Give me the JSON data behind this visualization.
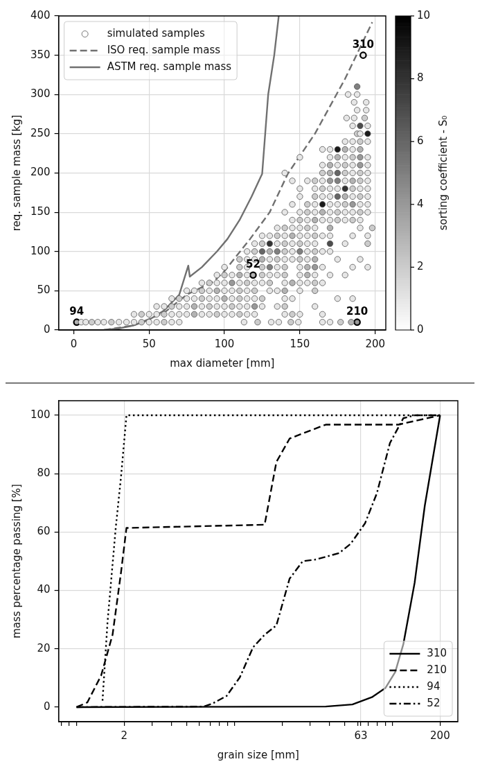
{
  "chart_data": [
    {
      "type": "scatter",
      "xlabel": "max diameter [mm]",
      "ylabel": "req. sample mass [kg]",
      "clabel": "sorting coefficient - S₀",
      "xlim": [
        -10,
        207
      ],
      "xticks": [
        0,
        50,
        100,
        150,
        200
      ],
      "ylim": [
        0,
        400
      ],
      "yticks": [
        0,
        50,
        100,
        150,
        200,
        250,
        300,
        350,
        400
      ],
      "clim": [
        0,
        10
      ],
      "cticks": [
        0,
        2,
        4,
        6,
        8,
        10
      ],
      "grid": true,
      "legend": "top left",
      "annotations": [
        {
          "text": "310",
          "x": 192,
          "y": 350
        },
        {
          "text": "52",
          "x": 119,
          "y": 70
        },
        {
          "text": "210",
          "x": 188,
          "y": 10
        },
        {
          "text": "94",
          "x": 2,
          "y": 10
        }
      ],
      "series": [
        {
          "name": "simulated samples",
          "type": "scatter",
          "marker": "circle",
          "color": "#555555",
          "x": [
            5,
            8,
            12,
            16,
            20,
            25,
            30,
            35,
            40,
            45,
            50,
            55,
            60,
            65,
            70,
            113,
            122,
            131,
            136,
            144,
            149,
            165,
            170,
            177,
            184,
            40,
            45,
            50,
            55,
            60,
            65,
            70,
            75,
            80,
            85,
            90,
            95,
            100,
            105,
            110,
            115,
            120,
            140,
            145,
            150,
            165,
            55,
            60,
            65,
            70,
            75,
            80,
            85,
            90,
            95,
            100,
            105,
            110,
            115,
            120,
            125,
            135,
            140,
            160,
            65,
            70,
            75,
            80,
            85,
            90,
            95,
            100,
            105,
            110,
            115,
            120,
            125,
            140,
            145,
            175,
            185,
            75,
            80,
            85,
            90,
            95,
            100,
            105,
            110,
            115,
            120,
            130,
            135,
            140,
            150,
            160,
            85,
            90,
            95,
            100,
            105,
            110,
            115,
            120,
            125,
            130,
            140,
            145,
            150,
            155,
            160,
            165,
            95,
            100,
            105,
            110,
            115,
            125,
            130,
            135,
            140,
            150,
            155,
            160,
            170,
            180,
            100,
            110,
            115,
            125,
            130,
            135,
            140,
            150,
            155,
            160,
            165,
            185,
            195,
            110,
            115,
            120,
            125,
            130,
            135,
            140,
            145,
            150,
            155,
            160,
            175,
            190,
            115,
            120,
            125,
            130,
            135,
            140,
            145,
            150,
            155,
            160,
            165,
            170,
            120,
            125,
            130,
            135,
            140,
            145,
            150,
            155,
            160,
            170,
            180,
            195,
            125,
            130,
            135,
            140,
            145,
            150,
            155,
            160,
            165,
            170,
            185,
            195,
            135,
            140,
            145,
            150,
            155,
            160,
            170,
            190,
            198,
            145,
            150,
            155,
            160,
            165,
            170,
            175,
            180,
            185,
            190,
            140,
            150,
            155,
            160,
            165,
            170,
            175,
            180,
            185,
            190,
            195,
            145,
            155,
            160,
            165,
            170,
            175,
            180,
            185,
            190,
            195,
            150,
            160,
            165,
            170,
            175,
            180,
            185,
            190,
            195,
            150,
            160,
            165,
            170,
            175,
            180,
            185,
            190,
            195,
            145,
            155,
            160,
            165,
            170,
            175,
            180,
            185,
            190,
            195,
            140,
            165,
            170,
            175,
            180,
            185,
            190,
            195,
            165,
            170,
            175,
            180,
            185,
            190,
            195,
            150,
            170,
            175,
            180,
            185,
            190,
            195,
            165,
            170,
            175,
            180,
            185,
            190,
            180,
            185,
            190,
            195,
            188,
            190,
            195,
            185,
            190,
            195,
            181,
            186,
            193,
            188,
            194,
            186,
            194,
            182,
            188,
            188
          ],
          "values": [
            10,
            10,
            10,
            10,
            10,
            10,
            10,
            10,
            10,
            10,
            10,
            10,
            10,
            10,
            10,
            10,
            10,
            10,
            10,
            10,
            10,
            10,
            10,
            10,
            10,
            20,
            20,
            20,
            20,
            20,
            20,
            20,
            20,
            20,
            20,
            20,
            20,
            20,
            20,
            20,
            20,
            20,
            20,
            20,
            20,
            20,
            30,
            30,
            30,
            30,
            30,
            30,
            30,
            30,
            30,
            30,
            30,
            30,
            30,
            30,
            30,
            30,
            30,
            30,
            40,
            40,
            40,
            40,
            40,
            40,
            40,
            40,
            40,
            40,
            40,
            40,
            40,
            40,
            40,
            40,
            40,
            50,
            50,
            50,
            50,
            50,
            50,
            50,
            50,
            50,
            50,
            50,
            50,
            50,
            50,
            50,
            60,
            60,
            60,
            60,
            60,
            60,
            60,
            60,
            60,
            60,
            60,
            60,
            60,
            60,
            60,
            60,
            70,
            70,
            70,
            70,
            70,
            70,
            70,
            70,
            70,
            70,
            70,
            70,
            70,
            70,
            80,
            80,
            80,
            80,
            80,
            80,
            80,
            80,
            80,
            80,
            80,
            80,
            80,
            90,
            90,
            90,
            90,
            90,
            90,
            90,
            90,
            90,
            90,
            90,
            90,
            90,
            100,
            100,
            100,
            100,
            100,
            100,
            100,
            100,
            100,
            100,
            100,
            100,
            110,
            110,
            110,
            110,
            110,
            110,
            110,
            110,
            110,
            110,
            110,
            110,
            120,
            120,
            120,
            120,
            120,
            120,
            120,
            120,
            120,
            120,
            120,
            120,
            130,
            130,
            130,
            130,
            130,
            130,
            130,
            130,
            130,
            140,
            140,
            140,
            140,
            140,
            140,
            140,
            140,
            140,
            140,
            150,
            150,
            150,
            150,
            150,
            150,
            150,
            150,
            150,
            150,
            150,
            160,
            160,
            160,
            160,
            160,
            160,
            160,
            160,
            160,
            160,
            170,
            170,
            170,
            170,
            170,
            170,
            170,
            170,
            170,
            180,
            180,
            180,
            180,
            180,
            180,
            180,
            180,
            180,
            190,
            190,
            190,
            190,
            190,
            190,
            190,
            190,
            190,
            190,
            200,
            200,
            200,
            200,
            200,
            200,
            200,
            200,
            210,
            210,
            210,
            210,
            210,
            210,
            210,
            220,
            220,
            220,
            220,
            220,
            220,
            220,
            230,
            230,
            230,
            230,
            230,
            230,
            240,
            240,
            240,
            240,
            250,
            250,
            250,
            260,
            260,
            260,
            270,
            270,
            270,
            280,
            280,
            290,
            290,
            300,
            300,
            310
          ],
          "cvalues": [
            1,
            1,
            2,
            1,
            1,
            2,
            1,
            1,
            1,
            2,
            1,
            1,
            2,
            1,
            1,
            1,
            2,
            1,
            1,
            2,
            1,
            1,
            1,
            2,
            3,
            1,
            2,
            1,
            1,
            2,
            1,
            1,
            1,
            3,
            1,
            1,
            2,
            1,
            1,
            2,
            1,
            1,
            1,
            2,
            1,
            1,
            1,
            1,
            2,
            1,
            1,
            3,
            1,
            2,
            1,
            1,
            2,
            1,
            1,
            4,
            1,
            1,
            2,
            1,
            1,
            2,
            1,
            1,
            2,
            1,
            1,
            3,
            1,
            2,
            1,
            1,
            2,
            1,
            1,
            1,
            1,
            1,
            1,
            2,
            1,
            3,
            1,
            1,
            2,
            1,
            2,
            1,
            1,
            3,
            1,
            2,
            1,
            2,
            1,
            1,
            4,
            1,
            2,
            1,
            1,
            2,
            1,
            3,
            1,
            1,
            2,
            1,
            1,
            2,
            1,
            3,
            1,
            2,
            1,
            1,
            2,
            1,
            3,
            1,
            1,
            1,
            1,
            2,
            1,
            2,
            5,
            1,
            2,
            1,
            3,
            4,
            1,
            1,
            1,
            2,
            1,
            1,
            3,
            1,
            2,
            1,
            1,
            2,
            1,
            3,
            1,
            1,
            1,
            2,
            6,
            3,
            5,
            2,
            1,
            5,
            1,
            2,
            1,
            1,
            1,
            2,
            8,
            1,
            2,
            1,
            2,
            1,
            1,
            7,
            1,
            2,
            1,
            1,
            2,
            1,
            3,
            1,
            1,
            2,
            1,
            1,
            1,
            1,
            1,
            2,
            1,
            1,
            2,
            1,
            3,
            1,
            2,
            1,
            2,
            1,
            3,
            1,
            1,
            2,
            1,
            2,
            1,
            1,
            1,
            2,
            1,
            3,
            1,
            2,
            1,
            1,
            2,
            1,
            1,
            2,
            1,
            9,
            1,
            1,
            2,
            4,
            1,
            1,
            1,
            2,
            1,
            1,
            6,
            3,
            1,
            2,
            1,
            1,
            1,
            2,
            1,
            1,
            8,
            2,
            1,
            1,
            1,
            1,
            2,
            1,
            4,
            5,
            1,
            3,
            2,
            1,
            1,
            2,
            3,
            6,
            2,
            1,
            2,
            1,
            1,
            3,
            1,
            2,
            1,
            4,
            1,
            1,
            1,
            3,
            1,
            2,
            4,
            1,
            1,
            1,
            9,
            3,
            1,
            3,
            1,
            1,
            2,
            1,
            2,
            1,
            9,
            1,
            7,
            1,
            1,
            1,
            2,
            1,
            1,
            1,
            1,
            1,
            1,
            5
          ]
        },
        {
          "type": "scatter",
          "marker": "circle",
          "color": "#000000",
          "x": [
            192,
            119,
            188,
            2
          ],
          "values": [
            350,
            70,
            10,
            10
          ],
          "cvalues": [
            1,
            3,
            4,
            3
          ]
        },
        {
          "name": "ISO req. sample mass",
          "type": "line",
          "marker": "none",
          "line_style": "dashed",
          "color": "#707070",
          "x": [
            20,
            40,
            60,
            75,
            93,
            100,
            117,
            130,
            142,
            160,
            180,
            198
          ],
          "values": [
            0,
            6,
            22,
            45,
            62,
            75,
            116,
            150,
            199,
            250,
            320,
            392
          ]
        },
        {
          "name": "ASTM req. sample mass",
          "type": "line",
          "marker": "none",
          "line_style": "solid",
          "color": "#707070",
          "x": [
            20,
            30,
            40,
            50,
            60,
            70,
            76,
            77,
            85,
            95,
            102,
            110,
            118,
            125,
            129,
            133,
            136
          ],
          "values": [
            0,
            2,
            6,
            13,
            25,
            45,
            82,
            68,
            80,
            100,
            116,
            140,
            170,
            199,
            300,
            350,
            400
          ]
        }
      ]
    },
    {
      "type": "line",
      "xlabel": "grain size [mm]",
      "ylabel": "mass percentage passing [%]",
      "log": "x",
      "xlim": [
        0.77,
        259
      ],
      "xticks": [
        {
          "value": 0.8,
          "label": null
        },
        {
          "value": 0.9,
          "label": null
        },
        {
          "value": 1,
          "label": null
        },
        2,
        {
          "value": 3,
          "label": null
        },
        {
          "value": 4,
          "label": null
        },
        {
          "value": 5,
          "label": null
        },
        {
          "value": 6,
          "label": null
        },
        {
          "value": 7,
          "label": null
        },
        {
          "value": 8,
          "label": null
        },
        {
          "value": 9,
          "label": null
        },
        {
          "value": 10,
          "label": null
        },
        {
          "value": 20,
          "label": null
        },
        {
          "value": 30,
          "label": null
        },
        {
          "value": 40,
          "label": null
        },
        {
          "value": 50,
          "label": null
        },
        {
          "value": 60,
          "label": null
        },
        63,
        {
          "value": 70,
          "label": null
        },
        {
          "value": 80,
          "label": null
        },
        {
          "value": 90,
          "label": null
        },
        {
          "value": 100,
          "label": null
        },
        200
      ],
      "ylim": [
        -5,
        105
      ],
      "yticks": [
        0,
        20,
        40,
        60,
        80,
        100
      ],
      "grid": true,
      "legend": "bottom right",
      "marker": "none",
      "series": [
        {
          "name": "310",
          "line_style": "solid",
          "color": "#000000",
          "x": [
            1,
            37.8,
            55.7,
            74,
            90,
            104,
            117,
            138,
            160,
            200
          ],
          "values": [
            0,
            0.2,
            0.9,
            3.4,
            6.5,
            12,
            21.5,
            42.6,
            69,
            100
          ]
        },
        {
          "name": "210",
          "line_style": "dashed",
          "color": "#000000",
          "x": [
            1,
            1.17,
            1.43,
            1.69,
            1.91,
            2.07,
            15.5,
            18.4,
            22.3,
            27,
            37.8,
            109,
            200
          ],
          "values": [
            0,
            1.6,
            10.8,
            24.8,
            46,
            61.4,
            62.5,
            84,
            92,
            93.8,
            96.8,
            96.8,
            100
          ]
        },
        {
          "name": "94",
          "line_style": "dotted",
          "color": "#000000",
          "x": [
            1.46,
            1.57,
            1.77,
            1.91,
            2.07,
            200
          ],
          "values": [
            2.2,
            29,
            61.4,
            78.7,
            100,
            100
          ]
        },
        {
          "name": "52",
          "line_style": "dashdot",
          "color": "#000000",
          "x": [
            1,
            6.37,
            7.3,
            8.9,
            10.8,
            13.1,
            15.5,
            18.4,
            22.3,
            27,
            32.8,
            46,
            54.4,
            67,
            79.6,
            96.3,
            117,
            138,
            200
          ],
          "values": [
            0,
            0.2,
            1.3,
            3.8,
            10.2,
            20.5,
            24.8,
            28,
            44,
            50,
            50.6,
            52.8,
            56,
            63,
            73.3,
            90.5,
            99,
            100,
            100
          ]
        }
      ]
    }
  ]
}
